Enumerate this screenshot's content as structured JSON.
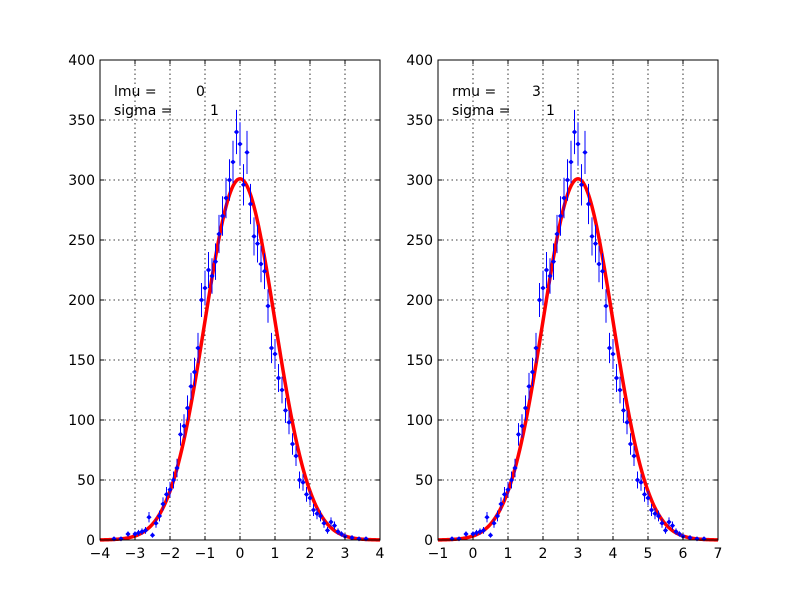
{
  "chart_data": [
    {
      "type": "scatter",
      "title": "",
      "xlabel": "",
      "ylabel": "",
      "xlim": [
        -4,
        4
      ],
      "ylim": [
        0,
        400
      ],
      "xticks": [
        -4,
        -3,
        -2,
        -1,
        0,
        1,
        2,
        3,
        4
      ],
      "yticks": [
        0,
        50,
        100,
        150,
        200,
        250,
        300,
        350,
        400
      ],
      "xtick_labels": [
        "−4",
        "−3",
        "−2",
        "−1",
        "0",
        "1",
        "2",
        "3",
        "4"
      ],
      "ytick_labels": [
        "0",
        "50",
        "100",
        "150",
        "200",
        "250",
        "300",
        "350",
        "400"
      ],
      "grid": true,
      "annotations": [
        {
          "label": "lmu =",
          "value": "0"
        },
        {
          "label": "sigma =",
          "value": "1"
        }
      ],
      "series": [
        {
          "kind": "errorbar",
          "color": "#0000ff",
          "x": [
            -3.6,
            -3.4,
            -3.2,
            -3.0,
            -2.9,
            -2.8,
            -2.7,
            -2.6,
            -2.5,
            -2.4,
            -2.3,
            -2.2,
            -2.1,
            -2.0,
            -1.9,
            -1.8,
            -1.7,
            -1.6,
            -1.5,
            -1.4,
            -1.3,
            -1.2,
            -1.1,
            -1.0,
            -0.9,
            -0.8,
            -0.7,
            -0.6,
            -0.5,
            -0.4,
            -0.3,
            -0.2,
            -0.1,
            0.0,
            0.1,
            0.2,
            0.3,
            0.4,
            0.5,
            0.6,
            0.7,
            0.8,
            0.9,
            1.0,
            1.1,
            1.2,
            1.3,
            1.4,
            1.5,
            1.6,
            1.7,
            1.8,
            1.9,
            2.0,
            2.1,
            2.2,
            2.3,
            2.4,
            2.5,
            2.6,
            2.7,
            2.8,
            2.9,
            3.0,
            3.2,
            3.4,
            3.6
          ],
          "y": [
            1,
            1,
            5,
            5,
            6,
            7,
            8,
            19,
            4,
            14,
            20,
            30,
            38,
            42,
            50,
            60,
            88,
            95,
            110,
            128,
            140,
            160,
            200,
            210,
            225,
            220,
            232,
            255,
            270,
            285,
            300,
            315,
            340,
            330,
            296,
            323,
            280,
            253,
            247,
            230,
            224,
            195,
            160,
            155,
            135,
            125,
            108,
            98,
            80,
            70,
            50,
            48,
            38,
            35,
            25,
            22,
            20,
            14,
            8,
            15,
            12,
            7,
            5,
            3,
            2,
            1,
            1
          ]
        },
        {
          "kind": "line",
          "color": "#ff0000",
          "function": "gaussian",
          "amplitude": 301,
          "mean": 0,
          "sigma": 1
        }
      ]
    },
    {
      "type": "scatter",
      "title": "",
      "xlabel": "",
      "ylabel": "",
      "xlim": [
        -1,
        7
      ],
      "ylim": [
        0,
        400
      ],
      "xticks": [
        -1,
        0,
        1,
        2,
        3,
        4,
        5,
        6,
        7
      ],
      "yticks": [
        0,
        50,
        100,
        150,
        200,
        250,
        300,
        350,
        400
      ],
      "xtick_labels": [
        "−1",
        "0",
        "1",
        "2",
        "3",
        "4",
        "5",
        "6",
        "7"
      ],
      "ytick_labels": [
        "0",
        "50",
        "100",
        "150",
        "200",
        "250",
        "300",
        "350",
        "400"
      ],
      "grid": true,
      "annotations": [
        {
          "label": "rmu =",
          "value": "3"
        },
        {
          "label": "sigma =",
          "value": "1"
        }
      ],
      "series": [
        {
          "kind": "errorbar",
          "color": "#0000ff",
          "x": [
            -0.6,
            -0.4,
            -0.2,
            0.0,
            0.1,
            0.2,
            0.3,
            0.4,
            0.5,
            0.6,
            0.7,
            0.8,
            0.9,
            1.0,
            1.1,
            1.2,
            1.3,
            1.4,
            1.5,
            1.6,
            1.7,
            1.8,
            1.9,
            2.0,
            2.1,
            2.2,
            2.3,
            2.4,
            2.5,
            2.6,
            2.7,
            2.8,
            2.9,
            3.0,
            3.1,
            3.2,
            3.3,
            3.4,
            3.5,
            3.6,
            3.7,
            3.8,
            3.9,
            4.0,
            4.1,
            4.2,
            4.3,
            4.4,
            4.5,
            4.6,
            4.7,
            4.8,
            4.9,
            5.0,
            5.1,
            5.2,
            5.3,
            5.4,
            5.5,
            5.6,
            5.7,
            5.8,
            5.9,
            6.0,
            6.2,
            6.4,
            6.6
          ],
          "y": [
            1,
            1,
            5,
            5,
            6,
            7,
            8,
            19,
            4,
            14,
            20,
            30,
            38,
            42,
            50,
            60,
            88,
            95,
            110,
            128,
            140,
            160,
            200,
            210,
            225,
            220,
            232,
            255,
            270,
            285,
            300,
            315,
            340,
            330,
            296,
            323,
            280,
            253,
            247,
            230,
            224,
            195,
            160,
            155,
            135,
            125,
            108,
            98,
            80,
            70,
            50,
            48,
            38,
            35,
            25,
            22,
            20,
            14,
            8,
            15,
            12,
            7,
            5,
            3,
            2,
            1,
            1
          ]
        },
        {
          "kind": "line",
          "color": "#ff0000",
          "function": "gaussian",
          "amplitude": 301,
          "mean": 3,
          "sigma": 1
        }
      ]
    }
  ]
}
